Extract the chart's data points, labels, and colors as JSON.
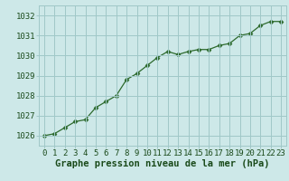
{
  "hours": [
    0,
    1,
    2,
    3,
    4,
    5,
    6,
    7,
    8,
    9,
    10,
    11,
    12,
    13,
    14,
    15,
    16,
    17,
    18,
    19,
    20,
    21,
    22,
    23
  ],
  "pressure": [
    1026.0,
    1026.1,
    1026.4,
    1026.7,
    1026.8,
    1027.4,
    1027.7,
    1028.0,
    1028.8,
    1029.1,
    1029.5,
    1029.9,
    1030.2,
    1030.05,
    1030.2,
    1030.3,
    1030.3,
    1030.5,
    1030.6,
    1031.0,
    1031.1,
    1031.5,
    1031.7,
    1031.7
  ],
  "ylim": [
    1025.5,
    1032.5
  ],
  "yticks": [
    1026,
    1027,
    1028,
    1029,
    1030,
    1031,
    1032
  ],
  "xticks": [
    0,
    1,
    2,
    3,
    4,
    5,
    6,
    7,
    8,
    9,
    10,
    11,
    12,
    13,
    14,
    15,
    16,
    17,
    18,
    19,
    20,
    21,
    22,
    23
  ],
  "line_color": "#2d6a2d",
  "marker": "D",
  "marker_size": 2.5,
  "bg_color": "#cde8e8",
  "grid_color": "#a0c8c8",
  "xlabel": "Graphe pression niveau de la mer (hPa)",
  "xlabel_color": "#1a4a1a",
  "xlabel_fontsize": 7.5,
  "tick_color": "#1a4a1a",
  "tick_fontsize": 6.5,
  "bottom_bg": "#5a9a5a"
}
